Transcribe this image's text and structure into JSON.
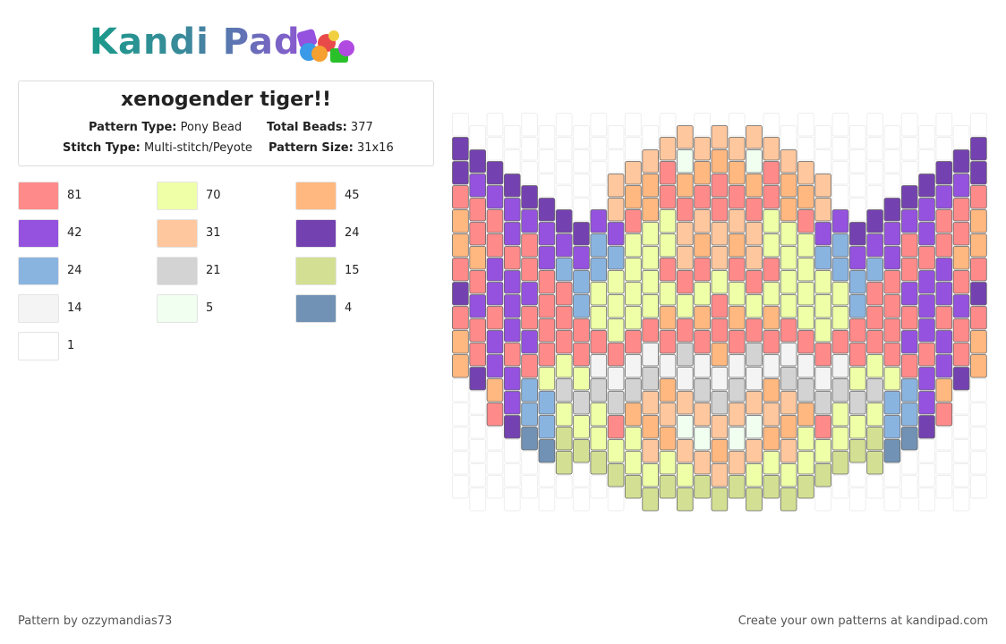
{
  "header": {
    "logo": "Kandi Pad",
    "title": "xenogender tiger!!",
    "pattern_type_label": "Pattern Type:",
    "pattern_type": "Pony Bead",
    "total_beads_label": "Total Beads:",
    "total_beads": 377,
    "stitch_type_label": "Stitch Type:",
    "stitch_type": "Multi-stitch/Peyote",
    "pattern_size_label": "Pattern Size:",
    "pattern_size": "31x16"
  },
  "legend": [
    {
      "color": "#ff8a8a",
      "count": 81
    },
    {
      "color": "#eeffa8",
      "count": 70
    },
    {
      "color": "#ffb880",
      "count": 45
    },
    {
      "color": "#9452df",
      "count": 42
    },
    {
      "color": "#ffc79e",
      "count": 31
    },
    {
      "color": "#7442b0",
      "count": 24
    },
    {
      "color": "#8ab4e0",
      "count": 24
    },
    {
      "color": "#d3d3d3",
      "count": 21
    },
    {
      "color": "#d3e093",
      "count": 15
    },
    {
      "color": "#f4f4f4",
      "count": 14
    },
    {
      "color": "#f0fff0",
      "count": 5
    },
    {
      "color": "#7192b4",
      "count": 4
    },
    {
      "color": "#ffffff",
      "count": 1
    }
  ],
  "footer": {
    "credit": "Pattern by ozzymandias73",
    "promo": "Create your own patterns at kandipad.com"
  }
}
